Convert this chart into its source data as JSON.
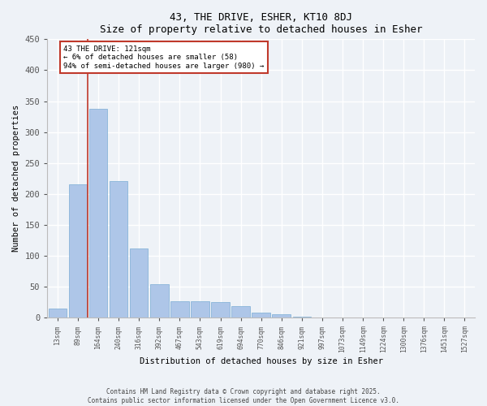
{
  "title": "43, THE DRIVE, ESHER, KT10 8DJ",
  "subtitle": "Size of property relative to detached houses in Esher",
  "xlabel": "Distribution of detached houses by size in Esher",
  "ylabel": "Number of detached properties",
  "categories": [
    "13sqm",
    "89sqm",
    "164sqm",
    "240sqm",
    "316sqm",
    "392sqm",
    "467sqm",
    "543sqm",
    "619sqm",
    "694sqm",
    "770sqm",
    "846sqm",
    "921sqm",
    "997sqm",
    "1073sqm",
    "1149sqm",
    "1224sqm",
    "1300sqm",
    "1376sqm",
    "1451sqm",
    "1527sqm"
  ],
  "values": [
    15,
    215,
    338,
    221,
    112,
    54,
    27,
    26,
    25,
    19,
    8,
    6,
    2,
    0,
    0,
    0,
    0,
    1,
    0,
    0,
    0
  ],
  "bar_color": "#aec6e8",
  "bar_edge_color": "#7aadd4",
  "vline_x": 1.5,
  "vline_color": "#c0392b",
  "annotation_text": "43 THE DRIVE: 121sqm\n← 6% of detached houses are smaller (58)\n94% of semi-detached houses are larger (980) →",
  "annotation_box_color": "#c0392b",
  "ylim": [
    0,
    450
  ],
  "yticks": [
    0,
    50,
    100,
    150,
    200,
    250,
    300,
    350,
    400,
    450
  ],
  "footer_line1": "Contains HM Land Registry data © Crown copyright and database right 2025.",
  "footer_line2": "Contains public sector information licensed under the Open Government Licence v3.0.",
  "bg_color": "#eef2f7",
  "grid_color": "#ffffff"
}
